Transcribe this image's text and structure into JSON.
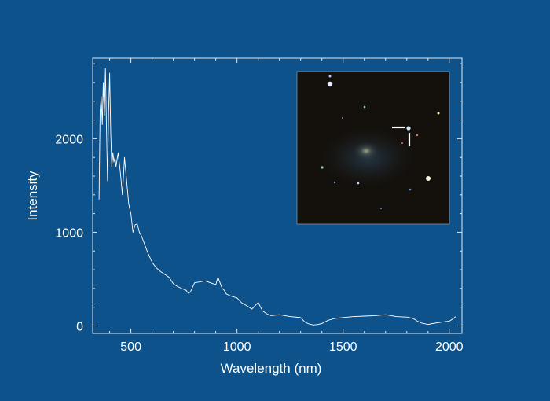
{
  "chart_data": {
    "type": "line",
    "title": "",
    "xlabel": "Wavelength (nm)",
    "ylabel": "Intensity",
    "xlim": [
      320,
      2060
    ],
    "ylim": [
      -80,
      2860
    ],
    "xticks": [
      500,
      1000,
      1500,
      2000
    ],
    "xtick_labels": [
      "500",
      "1000",
      "1500",
      "2000"
    ],
    "yticks": [
      0,
      1000,
      2000
    ],
    "ytick_labels": [
      "0",
      "1000",
      "2000"
    ],
    "grid": false,
    "series": [
      {
        "name": "",
        "x": [
          350,
          355,
          360,
          365,
          370,
          375,
          380,
          385,
          390,
          395,
          400,
          405,
          410,
          415,
          420,
          425,
          430,
          440,
          450,
          460,
          470,
          480,
          490,
          500,
          510,
          520,
          530,
          540,
          550,
          560,
          580,
          600,
          620,
          640,
          660,
          680,
          700,
          720,
          740,
          760,
          770,
          780,
          800,
          850,
          900,
          910,
          920,
          930,
          940,
          950,
          970,
          1000,
          1020,
          1050,
          1070,
          1100,
          1120,
          1140,
          1160,
          1200,
          1250,
          1300,
          1320,
          1340,
          1360,
          1380,
          1400,
          1430,
          1460,
          1500,
          1550,
          1600,
          1650,
          1700,
          1750,
          1800,
          1830,
          1850,
          1870,
          1890,
          1900,
          1920,
          1950,
          1980,
          2000,
          2020,
          2030
        ],
        "y": [
          1350,
          2300,
          2450,
          2150,
          2600,
          2250,
          2750,
          2100,
          1550,
          2300,
          2700,
          2050,
          1700,
          1850,
          1750,
          1800,
          1700,
          1850,
          1650,
          1400,
          1800,
          1550,
          1300,
          1200,
          1000,
          1080,
          1090,
          1000,
          960,
          900,
          780,
          680,
          620,
          580,
          550,
          520,
          450,
          420,
          400,
          380,
          350,
          360,
          460,
          480,
          440,
          520,
          460,
          400,
          380,
          340,
          320,
          300,
          250,
          210,
          180,
          250,
          160,
          130,
          110,
          120,
          100,
          90,
          40,
          20,
          10,
          15,
          25,
          60,
          80,
          90,
          100,
          105,
          110,
          120,
          100,
          95,
          80,
          50,
          30,
          20,
          15,
          25,
          35,
          45,
          50,
          80,
          100
        ]
      }
    ],
    "inset": {
      "description": "galaxy-image-with-marker"
    }
  },
  "colors": {
    "background": "#0e528c",
    "axis": "#dfe9f3",
    "line": "#ffffff",
    "inset_bg": "#14100b"
  }
}
